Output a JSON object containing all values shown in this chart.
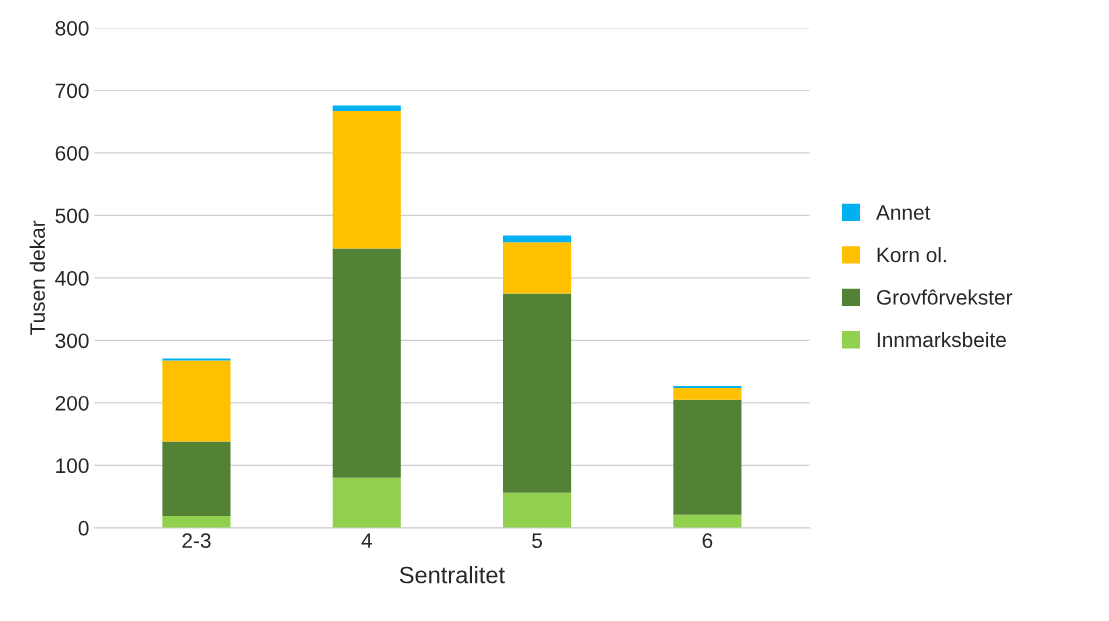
{
  "chart_data": {
    "type": "bar",
    "stacked": true,
    "xlabel": "Sentralitet",
    "ylabel": "Tusen dekar",
    "categories": [
      "2-3",
      "4",
      "5",
      "6"
    ],
    "series": [
      {
        "name": "Innmarksbeite",
        "color": "#92d050",
        "values": [
          19,
          80,
          56,
          21
        ]
      },
      {
        "name": "Grovfôrvekster",
        "color": "#548235",
        "values": [
          119,
          367,
          319,
          184
        ]
      },
      {
        "name": "Korn ol.",
        "color": "#ffc000",
        "values": [
          130,
          220,
          82,
          19
        ]
      },
      {
        "name": "Annet",
        "color": "#00b0f0",
        "values": [
          3,
          9,
          11,
          3
        ]
      }
    ],
    "ylim": [
      0,
      800
    ],
    "yticks": [
      0,
      100,
      200,
      300,
      400,
      500,
      600,
      700,
      800
    ],
    "grid": "y",
    "legend": "right"
  }
}
